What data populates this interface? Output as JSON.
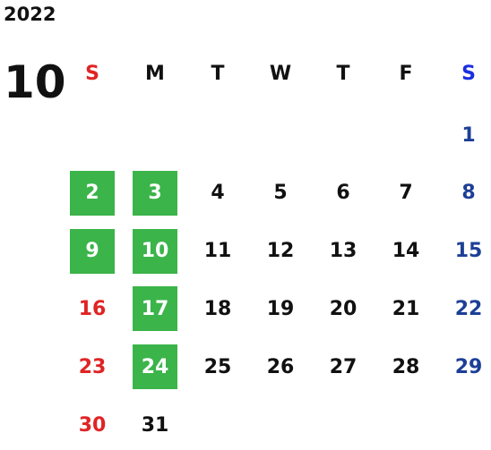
{
  "year": "2022",
  "month": "10",
  "weekdays": [
    "S",
    "M",
    "T",
    "W",
    "T",
    "F",
    "S"
  ],
  "weeks": [
    [
      null,
      null,
      null,
      null,
      null,
      null,
      {
        "day": "1"
      }
    ],
    [
      {
        "day": "2",
        "highlight": true
      },
      {
        "day": "3",
        "highlight": true
      },
      {
        "day": "4"
      },
      {
        "day": "5"
      },
      {
        "day": "6"
      },
      {
        "day": "7"
      },
      {
        "day": "8"
      }
    ],
    [
      {
        "day": "9",
        "highlight": true
      },
      {
        "day": "10",
        "highlight": true
      },
      {
        "day": "11"
      },
      {
        "day": "12"
      },
      {
        "day": "13"
      },
      {
        "day": "14"
      },
      {
        "day": "15"
      }
    ],
    [
      {
        "day": "16"
      },
      {
        "day": "17",
        "highlight": true
      },
      {
        "day": "18"
      },
      {
        "day": "19"
      },
      {
        "day": "20"
      },
      {
        "day": "21"
      },
      {
        "day": "22"
      }
    ],
    [
      {
        "day": "23"
      },
      {
        "day": "24",
        "highlight": true
      },
      {
        "day": "25"
      },
      {
        "day": "26"
      },
      {
        "day": "27"
      },
      {
        "day": "28"
      },
      {
        "day": "29"
      }
    ],
    [
      {
        "day": "30"
      },
      {
        "day": "31"
      },
      null,
      null,
      null,
      null,
      null
    ]
  ],
  "colors": {
    "sunday": "#e02424",
    "saturday_header": "#1a2fe0",
    "saturday": "#1d3f96",
    "weekday": "#111111",
    "highlight": "#3bb44a",
    "highlight_text": "#ffffff"
  }
}
